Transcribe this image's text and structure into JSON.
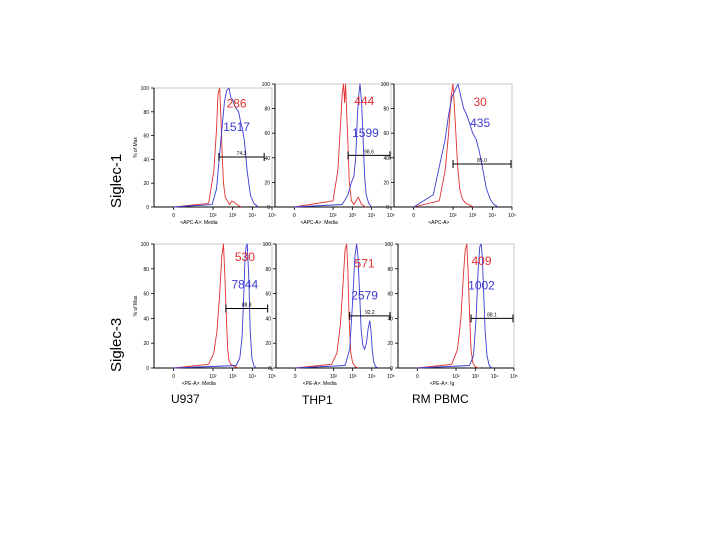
{
  "row_labels": [
    "Siglec-1",
    "Siglec-3"
  ],
  "column_labels": [
    "U937",
    "THP1",
    "RM PBMC"
  ],
  "colors": {
    "control": "#e0302f",
    "stain": "#3b3bd0",
    "axis": "#000000"
  },
  "chart_data": [
    {
      "type": "line",
      "row": "Siglec-1",
      "column": "U937",
      "ylabel": "% of Max",
      "xlabel": "<APC-A>: Media",
      "xscale": "log",
      "xlim": [
        0.1,
        100000
      ],
      "ylim": [
        0,
        100
      ],
      "xticks": [
        "0",
        "10²",
        "10³",
        "10⁴",
        "10⁵"
      ],
      "yticks": [
        0,
        20,
        40,
        60,
        80,
        100
      ],
      "gate": {
        "x_range": [
          200,
          40000
        ],
        "y": 42,
        "label": "74.3"
      },
      "annotations": [
        "286",
        "1517"
      ],
      "series": [
        {
          "role": "control",
          "x": [
            1,
            60,
            110,
            150,
            180,
            220,
            250,
            290,
            340,
            420,
            550,
            700,
            900,
            1200,
            2000,
            3000
          ],
          "y": [
            0,
            3,
            30,
            65,
            95,
            100,
            78,
            45,
            20,
            8,
            5,
            2,
            5,
            4,
            1,
            0
          ]
        },
        {
          "role": "stain",
          "x": [
            1,
            90,
            150,
            220,
            300,
            380,
            500,
            650,
            800,
            1000,
            1300,
            1600,
            2000,
            2500,
            3200,
            4000,
            5500,
            8000,
            12000,
            20000
          ],
          "y": [
            0,
            2,
            15,
            45,
            70,
            88,
            98,
            100,
            92,
            90,
            85,
            82,
            80,
            72,
            65,
            55,
            30,
            10,
            3,
            0
          ]
        }
      ]
    },
    {
      "type": "line",
      "row": "Siglec-1",
      "column": "THP1",
      "ylabel": "",
      "xlabel": "<APC-A>: Media",
      "xscale": "log",
      "xlim": [
        0.1,
        100000
      ],
      "ylim": [
        0,
        100
      ],
      "xticks": [
        "0",
        "10²",
        "10³",
        "10⁴",
        "10⁵"
      ],
      "yticks": [
        0,
        20,
        40,
        60,
        80,
        100
      ],
      "gate": {
        "x_range": [
          600,
          100000
        ],
        "y": 42,
        "label": "98.6"
      },
      "annotations": [
        "444",
        "1599"
      ],
      "series": [
        {
          "role": "control",
          "x": [
            1,
            100,
            180,
            250,
            300,
            350,
            400,
            450,
            500,
            600,
            700,
            900,
            1200,
            2000,
            3000,
            5000
          ],
          "y": [
            0,
            5,
            30,
            70,
            92,
            100,
            85,
            100,
            80,
            50,
            20,
            5,
            2,
            8,
            2,
            0
          ]
        },
        {
          "role": "stain",
          "x": [
            1,
            300,
            600,
            900,
            1200,
            1500,
            1800,
            2100,
            2500,
            3000,
            3600,
            4300,
            5200,
            7000,
            10000
          ],
          "y": [
            0,
            2,
            10,
            20,
            25,
            40,
            72,
            90,
            100,
            85,
            55,
            25,
            10,
            3,
            0
          ]
        }
      ]
    },
    {
      "type": "line",
      "row": "Siglec-1",
      "column": "RM PBMC",
      "ylabel": "",
      "xlabel": "<APC-A>",
      "xscale": "log",
      "xlim": [
        0.1,
        100000
      ],
      "ylim": [
        0,
        100
      ],
      "xticks": [
        "0",
        "10²",
        "10³",
        "10⁴",
        "10⁵"
      ],
      "yticks": [
        0,
        20,
        40,
        60,
        80,
        100
      ],
      "gate": {
        "x_range": [
          100,
          100000
        ],
        "y": 35,
        "label": "85.0"
      },
      "annotations": [
        "30",
        "435"
      ],
      "series": [
        {
          "role": "control",
          "x": [
            1,
            20,
            40,
            60,
            80,
            100,
            130,
            170,
            220,
            280,
            350,
            450,
            600,
            800,
            1200
          ],
          "y": [
            0,
            5,
            30,
            60,
            90,
            100,
            70,
            35,
            15,
            8,
            5,
            3,
            2,
            1,
            0
          ]
        },
        {
          "role": "stain",
          "x": [
            1,
            10,
            25,
            40,
            60,
            90,
            130,
            180,
            250,
            350,
            500,
            700,
            1000,
            1500,
            2200,
            3300,
            5000,
            8000,
            12000,
            20000
          ],
          "y": [
            0,
            10,
            40,
            55,
            75,
            90,
            95,
            100,
            90,
            80,
            75,
            68,
            60,
            55,
            45,
            30,
            15,
            6,
            2,
            0
          ]
        }
      ]
    },
    {
      "type": "line",
      "row": "Siglec-3",
      "column": "U937",
      "ylabel": "% of Max",
      "xlabel": "<PE-A>: Media",
      "xscale": "log",
      "xlim": [
        0.1,
        100000
      ],
      "ylim": [
        0,
        100
      ],
      "xticks": [
        "0",
        "10²",
        "10³",
        "10⁴",
        "10⁵"
      ],
      "yticks": [
        0,
        20,
        40,
        60,
        80,
        100
      ],
      "gate": {
        "x_range": [
          450,
          60000
        ],
        "y": 48,
        "label": "88.8"
      },
      "annotations": [
        "530",
        "7844"
      ],
      "series": [
        {
          "role": "control",
          "x": [
            1,
            60,
            110,
            160,
            220,
            280,
            340,
            400,
            480,
            560,
            650,
            800,
            1000,
            1400,
            2000
          ],
          "y": [
            0,
            3,
            12,
            30,
            60,
            90,
            100,
            75,
            40,
            15,
            6,
            3,
            2,
            1,
            0
          ]
        },
        {
          "role": "stain",
          "x": [
            1,
            1500,
            2300,
            3000,
            3700,
            4300,
            4900,
            5500,
            6500,
            7800,
            9500,
            12000,
            16000
          ],
          "y": [
            0,
            2,
            8,
            25,
            60,
            90,
            98,
            100,
            75,
            30,
            8,
            2,
            0
          ]
        }
      ]
    },
    {
      "type": "line",
      "row": "Siglec-3",
      "column": "THP1",
      "ylabel": "",
      "xlabel": "<PE-A>: Media",
      "xscale": "log",
      "xlim": [
        0.1,
        100000
      ],
      "ylim": [
        0,
        100
      ],
      "xticks": [
        "0",
        "10²",
        "10³",
        "10⁴",
        "10⁵"
      ],
      "yticks": [
        0,
        20,
        40,
        60,
        80,
        100
      ],
      "gate": {
        "x_range": [
          700,
          100000
        ],
        "y": 42,
        "label": "92.2"
      },
      "annotations": [
        "571",
        "2579"
      ],
      "series": [
        {
          "role": "control",
          "x": [
            1,
            80,
            150,
            230,
            320,
            400,
            480,
            560,
            650,
            800,
            1000,
            1400,
            2000
          ],
          "y": [
            0,
            3,
            12,
            35,
            70,
            95,
            100,
            80,
            40,
            12,
            4,
            1,
            0
          ]
        },
        {
          "role": "stain",
          "x": [
            1,
            400,
            700,
            1000,
            1300,
            1600,
            1900,
            2300,
            2800,
            3400,
            4200,
            5200,
            6500,
            7800,
            9000,
            10500,
            12500,
            16000,
            22000
          ],
          "y": [
            0,
            2,
            15,
            55,
            90,
            100,
            90,
            60,
            30,
            18,
            15,
            20,
            32,
            38,
            30,
            15,
            5,
            1,
            0
          ]
        }
      ]
    },
    {
      "type": "line",
      "row": "Siglec-3",
      "column": "RM PBMC",
      "ylabel": "",
      "xlabel": "<PE-A>: Ig",
      "xscale": "log",
      "xlim": [
        0.1,
        100000
      ],
      "ylim": [
        0,
        100
      ],
      "xticks": [
        "0",
        "10²",
        "10³",
        "10⁴",
        "10⁵"
      ],
      "yticks": [
        0,
        20,
        40,
        60,
        80,
        100
      ],
      "gate": {
        "x_range": [
          600,
          100000
        ],
        "y": 40,
        "label": "88.1"
      },
      "annotations": [
        "409",
        "1002"
      ],
      "series": [
        {
          "role": "control",
          "x": [
            1,
            60,
            120,
            180,
            240,
            300,
            360,
            420,
            500,
            600,
            750,
            1000,
            1500
          ],
          "y": [
            0,
            3,
            15,
            40,
            75,
            95,
            100,
            80,
            45,
            15,
            4,
            1,
            0
          ]
        },
        {
          "role": "stain",
          "x": [
            1,
            500,
            800,
            1100,
            1400,
            1700,
            2000,
            2300,
            2700,
            3200,
            4000,
            5200,
            7000
          ],
          "y": [
            0,
            2,
            10,
            40,
            80,
            98,
            100,
            90,
            60,
            30,
            10,
            2,
            0
          ]
        }
      ]
    }
  ]
}
